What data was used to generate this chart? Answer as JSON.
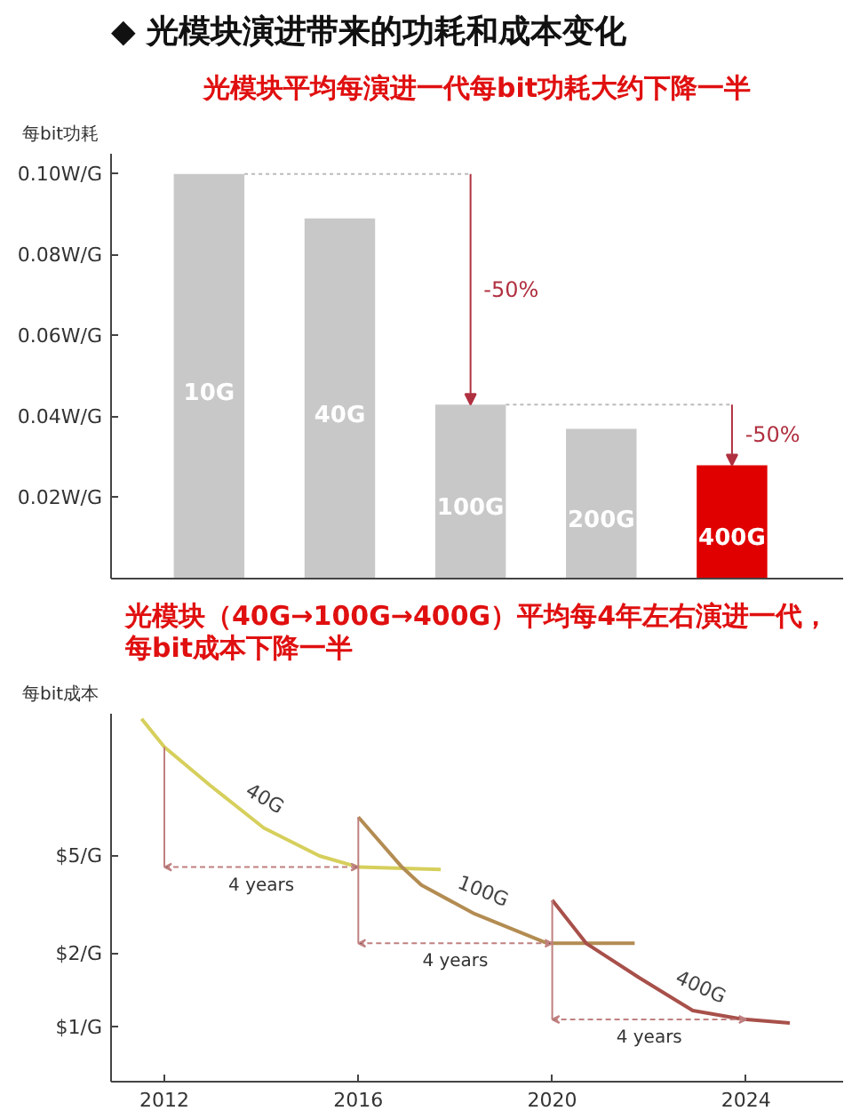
{
  "chart_data": [
    {
      "type": "bar",
      "title": "◆ 光模块演进带来的功耗和成本变化",
      "subtitle": "光模块平均每演进一代每bit功耗大约下降一半",
      "ylabel": "每bit功耗",
      "categories": [
        "10G",
        "40G",
        "100G",
        "200G",
        "400G"
      ],
      "values": [
        0.1,
        0.089,
        0.043,
        0.037,
        0.028
      ],
      "colors": [
        "#c8c8c8",
        "#c8c8c8",
        "#c8c8c8",
        "#c8c8c8",
        "#e00000"
      ],
      "ylim": [
        0,
        0.105
      ],
      "yticks": [
        {
          "value": 0.02,
          "label": "0.02W/G"
        },
        {
          "value": 0.04,
          "label": "0.04W/G"
        },
        {
          "value": 0.06,
          "label": "0.06W/G"
        },
        {
          "value": 0.08,
          "label": "0.08W/G"
        },
        {
          "value": 0.1,
          "label": "0.10W/G"
        }
      ],
      "ref_lines": [
        {
          "axis": "y",
          "value": 0.1,
          "color": "#bbbbbb",
          "line_style": "dashed"
        },
        {
          "axis": "y",
          "value": 0.043,
          "color": "#bbbbbb",
          "line_style": "dashed"
        }
      ],
      "annotations": [
        "-50%",
        "-50%"
      ],
      "grid": false
    },
    {
      "type": "line",
      "title": "光模块（40G→100G→400G）平均每4年左右演进一代，每bit成本下降一半",
      "ylabel": "每bit成本",
      "log": true,
      "series": [
        {
          "name": "40G",
          "color": "#d6cf5c",
          "x": [
            2011.53,
            2012,
            2012.94,
            2014.05,
            2015.2,
            2016,
            2017.7
          ],
          "values": [
            18.1,
            13.9,
            9.7,
            6.5,
            5.0,
            4.5,
            4.4
          ]
        },
        {
          "name": "100G",
          "color": "#b38c52",
          "x": [
            2016,
            2016.9,
            2017.3,
            2018.4,
            2019.9,
            2021.7
          ],
          "values": [
            7.2,
            4.5,
            3.8,
            2.9,
            2.2,
            2.2
          ]
        },
        {
          "name": "400G",
          "color": "#a8504a",
          "x": [
            2020,
            2020.7,
            2021.8,
            2022.9,
            2023.9,
            2024.9
          ],
          "values": [
            3.3,
            2.2,
            1.59,
            1.17,
            1.08,
            1.04
          ]
        }
      ],
      "xlim": [
        2010.9,
        2026
      ],
      "xticks": [
        2012,
        2016,
        2020,
        2024
      ],
      "ylim": [
        0.6,
        19
      ],
      "yticks": [
        {
          "value": 1,
          "label": "$1/G"
        },
        {
          "value": 2,
          "label": "$2/G"
        },
        {
          "value": 5,
          "label": "$5/G"
        }
      ],
      "annotations": [
        "4 years",
        "4 years",
        "4 years"
      ],
      "grid": false
    }
  ]
}
